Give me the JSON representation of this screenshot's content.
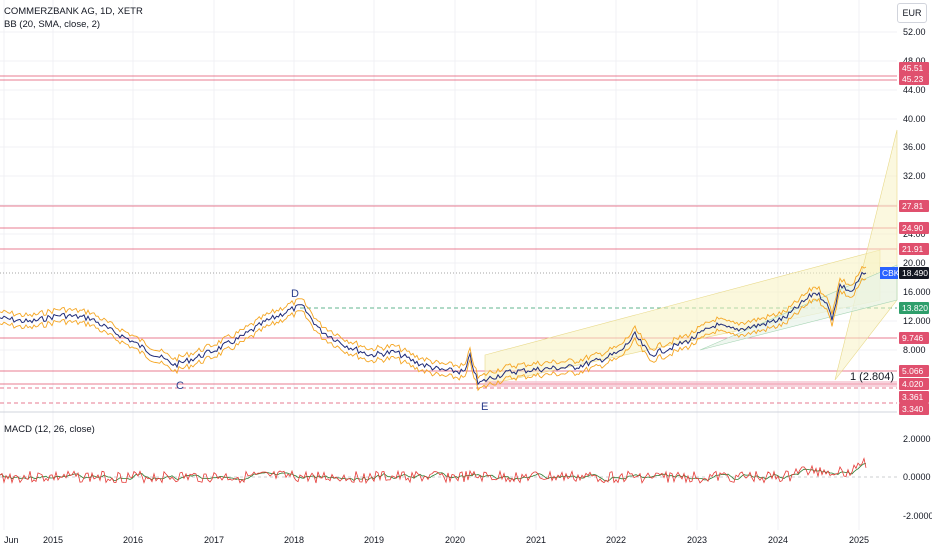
{
  "header": {
    "title": "COMMERZBANK AG, 1D, XETR",
    "indicator": "BB (20, SMA, close, 2)",
    "macd": "MACD (12, 26, close)"
  },
  "currency": "EUR",
  "price_axis": {
    "ticks": [
      "52.00",
      "48.00",
      "44.00",
      "40.00",
      "36.00",
      "32.00",
      "28.00",
      "24.00",
      "20.00",
      "16.000",
      "12.000",
      "8.000"
    ],
    "price_tags": [
      {
        "text": "45.51",
        "kind": "red"
      },
      {
        "text": "45.23",
        "kind": "red"
      },
      {
        "text": "27.81",
        "kind": "red"
      },
      {
        "text": "24.90",
        "kind": "red"
      },
      {
        "text": "21.91",
        "kind": "red"
      },
      {
        "text": "18.490",
        "kind": "dark",
        "symbol": "CBK"
      },
      {
        "text": "13.820",
        "kind": "green"
      },
      {
        "text": "9.746",
        "kind": "red"
      },
      {
        "text": "5.066",
        "kind": "red"
      },
      {
        "text": "4.020",
        "kind": "red"
      },
      {
        "text": "3.361",
        "kind": "red"
      },
      {
        "text": "3.340",
        "kind": "red"
      }
    ]
  },
  "macd_axis": {
    "ticks": [
      "2.0000",
      "0.0000",
      "-2.0000"
    ]
  },
  "time_axis": {
    "labels": [
      "Jun",
      "2015",
      "2016",
      "2017",
      "2018",
      "2019",
      "2020",
      "2021",
      "2022",
      "2023",
      "2024",
      "2025"
    ]
  },
  "wave_labels": [
    "C",
    "D",
    "E"
  ],
  "fib_label": "1 (2.804)",
  "colors": {
    "price_line": "#1e2a78",
    "bollinger": "#f5a623",
    "red_level": "#e0506e",
    "green_level": "#2e9e6b",
    "channel_fill": "#f7f2c0",
    "fan_fill": "#e8f3ea",
    "macd": "#e53935",
    "signal": "#2e7d32",
    "dark_tag": "#131722",
    "grid": "#f0f1f4"
  }
}
